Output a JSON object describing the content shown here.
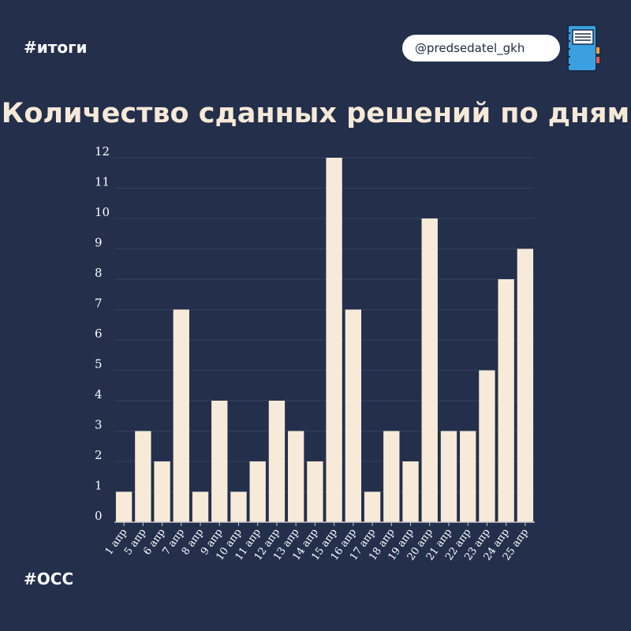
{
  "header": {
    "tag_top": "#итоги",
    "handle": "@predsedatel_gkh"
  },
  "footer": {
    "tag_bottom": "#ОСС"
  },
  "colors": {
    "background": "#232f4b",
    "bar": "#f8ead8",
    "grid": "#34405e",
    "text": "#ffffff"
  },
  "icons": {
    "channel": "notebook-icon"
  },
  "chart_data": {
    "type": "bar",
    "title": "Количество сданных решений по дням",
    "xlabel": "",
    "ylabel": "",
    "ylim": [
      0,
      12
    ],
    "yticks": [
      0,
      1,
      2,
      3,
      4,
      5,
      6,
      7,
      8,
      9,
      10,
      11,
      12
    ],
    "grid": true,
    "categories": [
      "1 апр",
      "5 апр",
      "6 апр",
      "7 апр",
      "8 апр",
      "9 апр",
      "10 апр",
      "11 апр",
      "12 апр",
      "13 апр",
      "14 апр",
      "15 апр",
      "16 апр",
      "17 апр",
      "18 апр",
      "19 апр",
      "20 апр",
      "21 апр",
      "22 апр",
      "23 апр",
      "24 апр",
      "25 апр"
    ],
    "values": [
      1,
      3,
      2,
      7,
      1,
      4,
      1,
      2,
      4,
      3,
      2,
      12,
      7,
      1,
      3,
      2,
      10,
      3,
      3,
      5,
      8,
      9
    ]
  }
}
